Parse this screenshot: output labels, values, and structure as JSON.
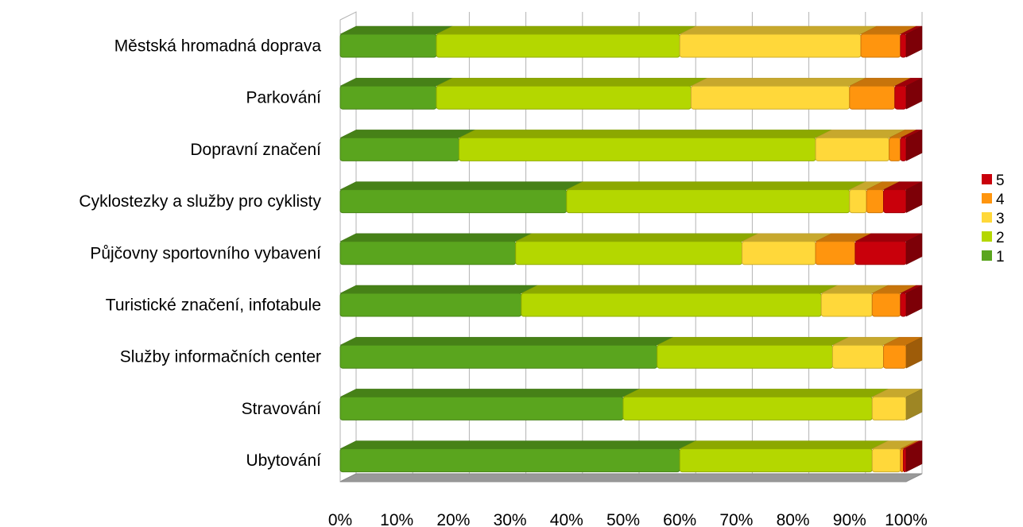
{
  "chart_data": {
    "type": "bar",
    "orientation": "horizontal",
    "stacked": "percent",
    "three_d": true,
    "categories": [
      "Městská hromadná doprava",
      "Parkování",
      "Dopravní značení",
      "Cyklostezky a služby pro cyklisty",
      "Půjčovny sportovního vybavení",
      "Turistické značení, infotabule",
      "Služby informačních center",
      "Stravování",
      "Ubytování"
    ],
    "series": [
      {
        "name": "1",
        "color": "#5aa51e",
        "values": [
          17,
          17,
          21,
          40,
          31,
          32,
          56,
          50,
          60
        ]
      },
      {
        "name": "2",
        "color": "#b4d700",
        "values": [
          43,
          45,
          63,
          50,
          40,
          53,
          31,
          44,
          34
        ]
      },
      {
        "name": "3",
        "color": "#ffd83a",
        "values": [
          32,
          28,
          13,
          3,
          13,
          9,
          9,
          6,
          5
        ]
      },
      {
        "name": "4",
        "color": "#ff950e",
        "values": [
          7,
          8,
          2,
          3,
          7,
          5,
          4,
          0,
          0.5
        ]
      },
      {
        "name": "5",
        "color": "#c9000b",
        "values": [
          1,
          2,
          1,
          4,
          9,
          1,
          0,
          0,
          0.5
        ]
      }
    ],
    "xticks": [
      "0%",
      "10%",
      "20%",
      "30%",
      "40%",
      "50%",
      "60%",
      "70%",
      "80%",
      "90%",
      "100%"
    ],
    "xlim": [
      0,
      100
    ],
    "grid": true,
    "legend": "right"
  }
}
